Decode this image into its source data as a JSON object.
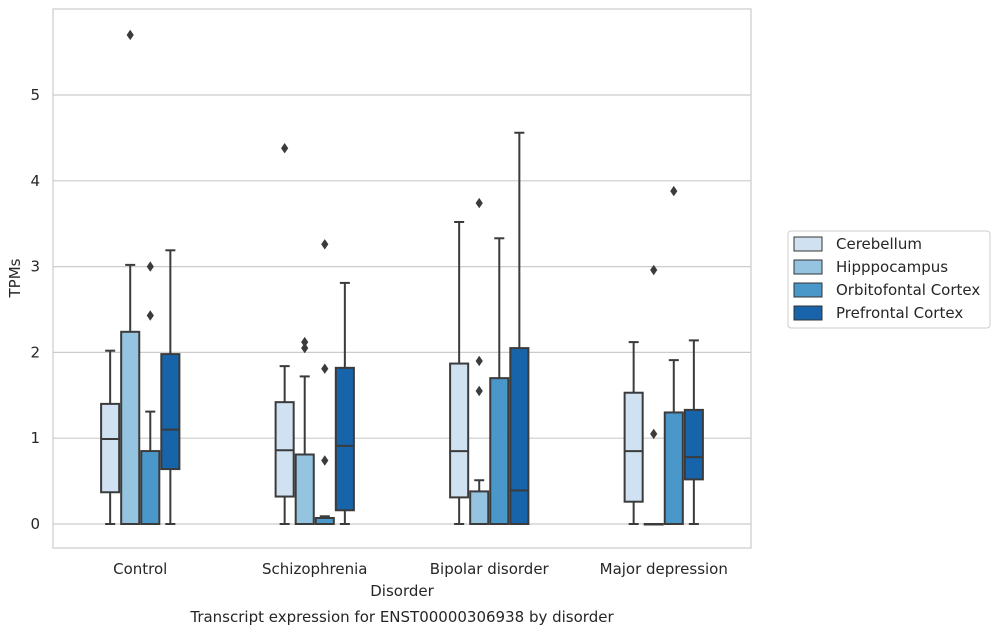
{
  "chart_data": {
    "type": "box",
    "title": "Transcript expression for ENST00000306938 by disorder",
    "xlabel": "Disorder",
    "ylabel": "TPMs",
    "ylim": [
      -0.28,
      6.0
    ],
    "yticks": [
      0,
      1,
      2,
      3,
      4,
      5
    ],
    "grid": "horizontal",
    "legend_position": "right",
    "categories": [
      "Control",
      "Schizophrenia",
      "Bipolar disorder",
      "Major depression"
    ],
    "series": [
      {
        "name": "Cerebellum",
        "color": "#d0e1f2",
        "boxes": [
          {
            "whislo": 0.0,
            "q1": 0.37,
            "med": 0.99,
            "q3": 1.4,
            "whishi": 2.02,
            "fliers": []
          },
          {
            "whislo": 0.0,
            "q1": 0.32,
            "med": 0.86,
            "q3": 1.42,
            "whishi": 1.84,
            "fliers": [
              4.38
            ]
          },
          {
            "whislo": 0.0,
            "q1": 0.31,
            "med": 0.85,
            "q3": 1.87,
            "whishi": 3.52,
            "fliers": []
          },
          {
            "whislo": 0.0,
            "q1": 0.26,
            "med": 0.85,
            "q3": 1.53,
            "whishi": 2.12,
            "fliers": []
          }
        ]
      },
      {
        "name": "Hipppocampus",
        "color": "#94c4df",
        "boxes": [
          {
            "whislo": 0.0,
            "q1": 0.0,
            "med": 0.0,
            "q3": 2.24,
            "whishi": 3.02,
            "fliers": [
              5.7
            ]
          },
          {
            "whislo": 0.0,
            "q1": 0.0,
            "med": 0.0,
            "q3": 0.81,
            "whishi": 1.72,
            "fliers": [
              2.05,
              2.12
            ]
          },
          {
            "whislo": 0.0,
            "q1": 0.0,
            "med": 0.0,
            "q3": 0.38,
            "whishi": 0.51,
            "fliers": [
              1.55,
              1.9,
              3.74
            ]
          },
          {
            "whislo": 0.0,
            "q1": 0.0,
            "med": 0.0,
            "q3": 0.0,
            "whishi": 0.0,
            "fliers": [
              1.05,
              2.96
            ]
          }
        ]
      },
      {
        "name": "Orbitofontal Cortex",
        "color": "#4a98c9",
        "boxes": [
          {
            "whislo": 0.0,
            "q1": 0.0,
            "med": 0.0,
            "q3": 0.85,
            "whishi": 1.31,
            "fliers": [
              2.43,
              3.0
            ]
          },
          {
            "whislo": 0.0,
            "q1": 0.0,
            "med": 0.0,
            "q3": 0.07,
            "whishi": 0.09,
            "fliers": [
              0.74,
              1.81,
              3.26
            ]
          },
          {
            "whislo": 0.0,
            "q1": 0.0,
            "med": 0.0,
            "q3": 1.7,
            "whishi": 3.33,
            "fliers": []
          },
          {
            "whislo": 0.0,
            "q1": 0.0,
            "med": 0.0,
            "q3": 1.3,
            "whishi": 1.91,
            "fliers": [
              3.88
            ]
          }
        ]
      },
      {
        "name": "Prefrontal Cortex",
        "color": "#1764ab",
        "boxes": [
          {
            "whislo": 0.0,
            "q1": 0.64,
            "med": 1.1,
            "q3": 1.98,
            "whishi": 3.19,
            "fliers": []
          },
          {
            "whislo": 0.0,
            "q1": 0.16,
            "med": 0.91,
            "q3": 1.82,
            "whishi": 2.81,
            "fliers": []
          },
          {
            "whislo": 0.0,
            "q1": 0.0,
            "med": 0.39,
            "q3": 2.05,
            "whishi": 4.56,
            "fliers": []
          },
          {
            "whislo": 0.0,
            "q1": 0.52,
            "med": 0.78,
            "q3": 1.33,
            "whishi": 2.14,
            "fliers": []
          }
        ]
      }
    ]
  }
}
